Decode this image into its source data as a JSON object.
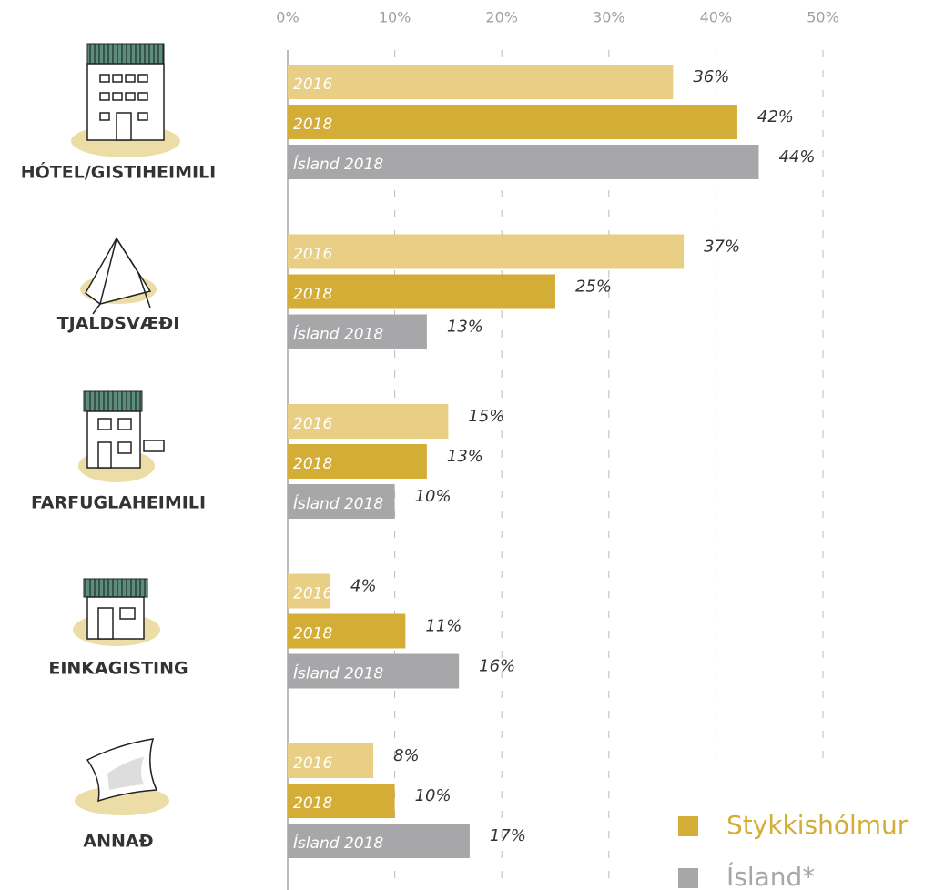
{
  "chart_data": {
    "type": "bar",
    "orientation": "horizontal",
    "categories": [
      "HÓTEL/GISTIHEIMILI",
      "TJALDSVÆÐI",
      "FARFUGLAHEIMILI",
      "EINKAGISTING",
      "ANNAÐ"
    ],
    "series": [
      {
        "name": "2016",
        "color": "#e8cf85",
        "values": [
          36,
          37,
          15,
          4,
          8
        ],
        "value_labels": [
          "36%",
          "37%",
          "15%",
          "4%",
          "8%"
        ]
      },
      {
        "name": "2018",
        "color": "#d4ad37",
        "values": [
          42,
          25,
          13,
          11,
          10
        ],
        "value_labels": [
          "42%",
          "25%",
          "13%",
          "11%",
          "10%"
        ]
      },
      {
        "name": "Ísland 2018",
        "color": "#a7a7a9",
        "values": [
          44,
          13,
          10,
          16,
          17
        ],
        "value_labels": [
          "44%",
          "13%",
          "10%",
          "16%",
          "17%"
        ]
      }
    ],
    "xlim": [
      0,
      50
    ],
    "xticks": [
      {
        "value": 0,
        "label": "0%"
      },
      {
        "value": 10,
        "label": "10%"
      },
      {
        "value": 20,
        "label": "20%"
      },
      {
        "value": 30,
        "label": "30%"
      },
      {
        "value": 40,
        "label": "40%"
      },
      {
        "value": 50,
        "label": "50%"
      }
    ],
    "grid": true,
    "legend": [
      {
        "label": "Stykkishólmur",
        "color": "#d4ad37"
      },
      {
        "label": "Ísland*",
        "color": "#a7a7a9"
      }
    ]
  }
}
